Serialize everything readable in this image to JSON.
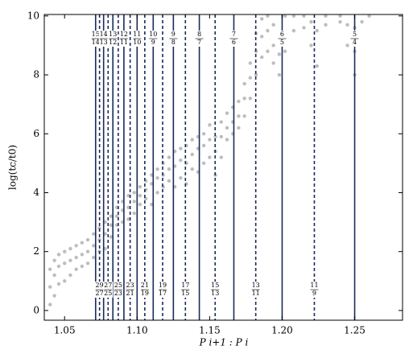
{
  "chart_data": {
    "type": "scatter",
    "xlabel": "P i+1 : P i",
    "ylabel": "log(tc/t0)",
    "xlim": [
      1.036,
      1.283
    ],
    "ylim": [
      -0.33,
      10.05
    ],
    "xticks": [
      {
        "value": 1.05,
        "label": "1.05"
      },
      {
        "value": 1.1,
        "label": "1.10"
      },
      {
        "value": 1.15,
        "label": "1.15"
      },
      {
        "value": 1.2,
        "label": "1.20"
      },
      {
        "value": 1.25,
        "label": "1.25"
      }
    ],
    "yticks": [
      0,
      2,
      4,
      6,
      8,
      10
    ],
    "color": "#bdbdbd",
    "line_color": "#1b2a5a",
    "x": [
      1.04,
      1.04,
      1.04,
      1.043,
      1.043,
      1.043,
      1.046,
      1.046,
      1.046,
      1.05,
      1.05,
      1.05,
      1.054,
      1.054,
      1.054,
      1.058,
      1.058,
      1.058,
      1.062,
      1.062,
      1.062,
      1.066,
      1.066,
      1.066,
      1.07,
      1.07,
      1.07,
      1.074,
      1.074,
      1.074,
      1.078,
      1.078,
      1.078,
      1.082,
      1.082,
      1.082,
      1.086,
      1.086,
      1.086,
      1.09,
      1.09,
      1.09,
      1.094,
      1.094,
      1.094,
      1.098,
      1.098,
      1.098,
      1.102,
      1.102,
      1.102,
      1.106,
      1.106,
      1.106,
      1.11,
      1.11,
      1.11,
      1.114,
      1.114,
      1.114,
      1.118,
      1.118,
      1.118,
      1.122,
      1.122,
      1.122,
      1.126,
      1.126,
      1.126,
      1.13,
      1.13,
      1.13,
      1.134,
      1.134,
      1.134,
      1.138,
      1.138,
      1.138,
      1.142,
      1.142,
      1.142,
      1.146,
      1.146,
      1.146,
      1.15,
      1.15,
      1.15,
      1.154,
      1.154,
      1.154,
      1.158,
      1.158,
      1.158,
      1.162,
      1.162,
      1.162,
      1.166,
      1.166,
      1.166,
      1.17,
      1.17,
      1.17,
      1.174,
      1.174,
      1.174,
      1.178,
      1.178,
      1.178,
      1.182,
      1.182,
      1.182,
      1.186,
      1.186,
      1.186,
      1.19,
      1.19,
      1.19,
      1.194,
      1.194,
      1.194,
      1.198,
      1.198,
      1.198,
      1.202,
      1.202,
      1.202,
      1.208,
      1.208,
      1.215,
      1.215,
      1.22,
      1.22,
      1.224,
      1.224,
      1.23,
      1.23,
      1.24,
      1.24,
      1.245,
      1.245,
      1.25,
      1.25,
      1.25,
      1.255,
      1.26
    ],
    "values": [
      0.2,
      0.8,
      1.4,
      0.5,
      1.2,
      1.7,
      0.9,
      1.5,
      1.9,
      1.0,
      1.6,
      2.0,
      1.2,
      1.7,
      2.1,
      1.4,
      1.8,
      2.2,
      1.5,
      1.9,
      2.3,
      1.6,
      2.0,
      2.4,
      1.8,
      2.2,
      2.6,
      2.0,
      2.4,
      2.8,
      2.1,
      2.6,
      3.0,
      2.5,
      2.9,
      3.2,
      2.9,
      3.2,
      3.5,
      3.0,
      3.4,
      3.7,
      3.1,
      3.5,
      3.9,
      3.3,
      3.7,
      4.0,
      3.6,
      3.9,
      4.2,
      3.8,
      4.1,
      4.4,
      3.6,
      4.3,
      4.6,
      4.0,
      4.5,
      4.8,
      4.2,
      4.6,
      5.0,
      4.4,
      4.8,
      5.2,
      4.2,
      4.9,
      5.4,
      4.5,
      5.1,
      5.5,
      4.3,
      5.0,
      5.6,
      4.8,
      5.3,
      5.8,
      4.7,
      5.5,
      5.9,
      5.0,
      5.6,
      6.0,
      5.2,
      5.8,
      6.3,
      4.6,
      5.4,
      5.9,
      5.2,
      5.9,
      6.4,
      5.8,
      6.2,
      6.7,
      6.0,
      6.4,
      6.9,
      6.2,
      6.6,
      7.1,
      6.6,
      7.2,
      7.7,
      7.2,
      7.9,
      8.4,
      8.0,
      8.8,
      9.4,
      8.6,
      9.3,
      9.9,
      8.8,
      9.5,
      10.0,
      8.4,
      9.0,
      9.7,
      8.0,
      8.7,
      9.4,
      8.8,
      9.4,
      10.0,
      9.5,
      10.0,
      9.6,
      10.0,
      9.0,
      9.8,
      8.3,
      9.5,
      9.7,
      10.0,
      9.8,
      10.0,
      9.0,
      9.7,
      8.0,
      8.8,
      9.6,
      9.8,
      10.0
    ],
    "resonances": {
      "top": {
        "line_style": "solid",
        "items": [
          {
            "num": 15,
            "den": 14,
            "x": 1.0714
          },
          {
            "num": 14,
            "den": 13,
            "x": 1.0769
          },
          {
            "num": 13,
            "den": 12,
            "x": 1.0833
          },
          {
            "num": 12,
            "den": 11,
            "x": 1.0909
          },
          {
            "num": 11,
            "den": 10,
            "x": 1.1
          },
          {
            "num": 10,
            "den": 9,
            "x": 1.1111
          },
          {
            "num": 9,
            "den": 8,
            "x": 1.125
          },
          {
            "num": 8,
            "den": 7,
            "x": 1.1429
          },
          {
            "num": 7,
            "den": 6,
            "x": 1.1667
          },
          {
            "num": 6,
            "den": 5,
            "x": 1.2
          },
          {
            "num": 5,
            "den": 4,
            "x": 1.25
          }
        ]
      },
      "bottom": {
        "line_style": "dashed",
        "items": [
          {
            "num": 29,
            "den": 27,
            "x": 1.0741
          },
          {
            "num": 27,
            "den": 25,
            "x": 1.08
          },
          {
            "num": 25,
            "den": 23,
            "x": 1.087
          },
          {
            "num": 23,
            "den": 21,
            "x": 1.0952
          },
          {
            "num": 21,
            "den": 19,
            "x": 1.1053
          },
          {
            "num": 19,
            "den": 17,
            "x": 1.1176
          },
          {
            "num": 17,
            "den": 15,
            "x": 1.1333
          },
          {
            "num": 15,
            "den": 13,
            "x": 1.1538
          },
          {
            "num": 13,
            "den": 11,
            "x": 1.1818
          },
          {
            "num": 11,
            "den": 9,
            "x": 1.2222
          }
        ]
      }
    }
  }
}
